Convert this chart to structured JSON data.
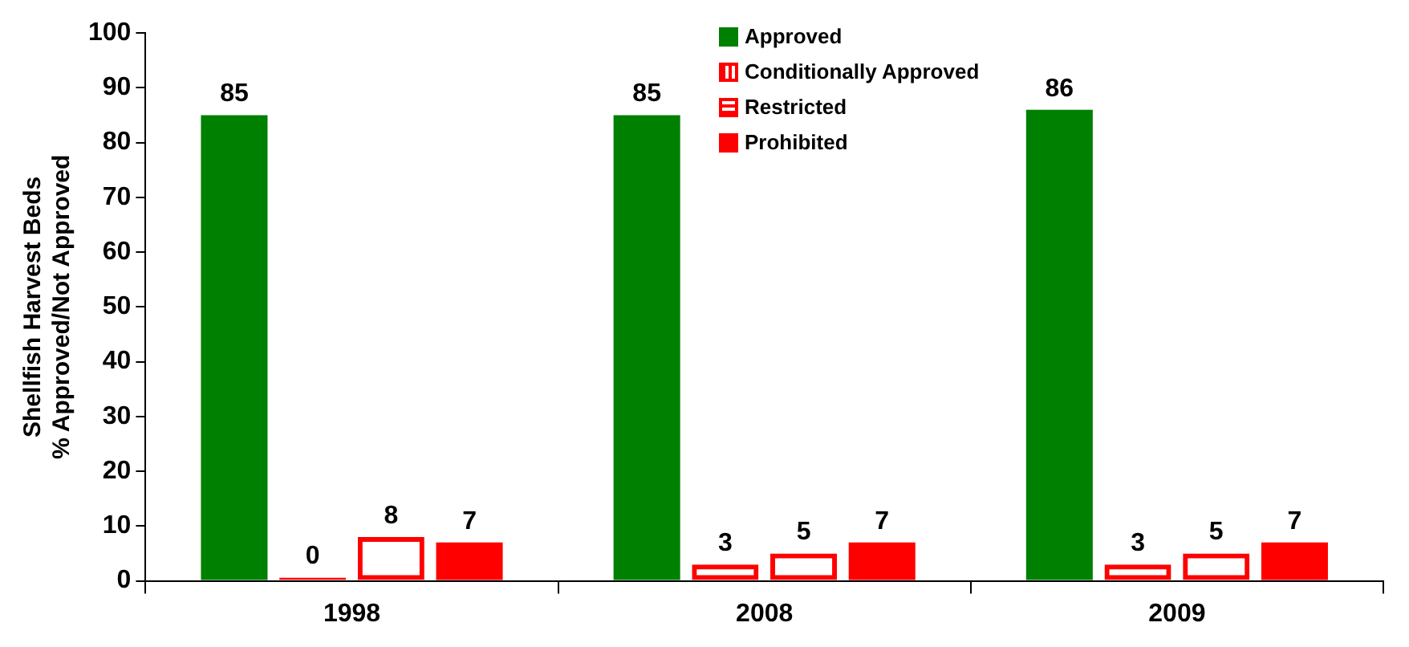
{
  "chart_data": {
    "type": "bar",
    "ylabel": "Shellfish Harvest Beds\n% Approved/Not Approved",
    "categories": [
      "1998",
      "2008",
      "2009"
    ],
    "series": [
      {
        "name": "Approved",
        "color": "#008000",
        "values": [
          85,
          85,
          86
        ]
      },
      {
        "name": "Conditionally Approved",
        "color": "#ff0000",
        "values": [
          0,
          3,
          3
        ]
      },
      {
        "name": "Restricted",
        "color": "#ff0000",
        "values": [
          8,
          5,
          5
        ]
      },
      {
        "name": "Prohibited",
        "color": "#ff0000",
        "values": [
          7,
          7,
          7
        ]
      }
    ],
    "ylim": [
      0,
      100
    ],
    "yticks": [
      0,
      10,
      20,
      30,
      40,
      50,
      60,
      70,
      80,
      90,
      100
    ],
    "grid": false,
    "legend": "top",
    "data_labels": true
  }
}
